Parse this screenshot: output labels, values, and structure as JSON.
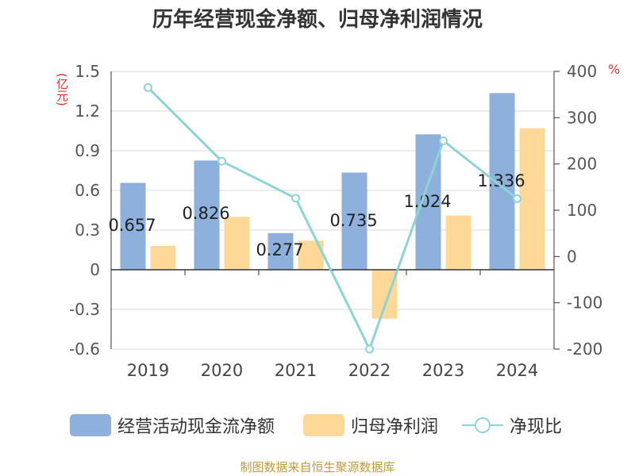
{
  "title": "历年经营现金净额、归母净利润情况",
  "units": {
    "left": "(亿元)",
    "right": "%"
  },
  "legend": {
    "cash_flow": "经营活动现金流净额",
    "net_profit": "归母净利润",
    "ratio": "净现比"
  },
  "source": "制图数据来自恒生聚源数据库",
  "colors": {
    "cash_flow": "#8eb0dc",
    "net_profit": "#fed897",
    "ratio": "#8dd3d7",
    "unit_red": "#e03030",
    "source": "#c09a3c"
  },
  "chart_data": {
    "type": "bar+line",
    "title": "历年经营现金净额、归母净利润情况",
    "categories": [
      "2019",
      "2020",
      "2021",
      "2022",
      "2023",
      "2024"
    ],
    "series": [
      {
        "name": "经营活动现金流净额",
        "type": "bar",
        "axis": "left",
        "values": [
          0.657,
          0.826,
          0.277,
          0.735,
          1.024,
          1.336
        ],
        "labels": [
          "0.657",
          "0.826",
          "0.277",
          "0.735",
          "1.024",
          "1.336"
        ]
      },
      {
        "name": "归母净利润",
        "type": "bar",
        "axis": "left",
        "values": [
          0.18,
          0.4,
          0.22,
          -0.37,
          0.41,
          1.07
        ]
      },
      {
        "name": "净现比",
        "type": "line",
        "axis": "right",
        "values": [
          365,
          206,
          126,
          -200,
          250,
          125
        ]
      }
    ],
    "y_left": {
      "label": "(亿元)",
      "ticks": [
        1.5,
        1.2,
        0.9,
        0.6,
        0.3,
        0,
        -0.3,
        -0.6
      ],
      "tick_labels": [
        "1.5",
        "1.2",
        "0.9",
        "0.6",
        "0.3",
        "0",
        "-0.3",
        "-0.6"
      ],
      "range": [
        -0.6,
        1.5
      ]
    },
    "y_right": {
      "label": "%",
      "ticks": [
        400,
        300,
        200,
        100,
        0,
        -100,
        -200
      ],
      "tick_labels": [
        "400",
        "300",
        "200",
        "100",
        "0",
        "-100",
        "-200"
      ],
      "range": [
        -200,
        400
      ]
    },
    "grid": true,
    "legend_position": "bottom"
  }
}
